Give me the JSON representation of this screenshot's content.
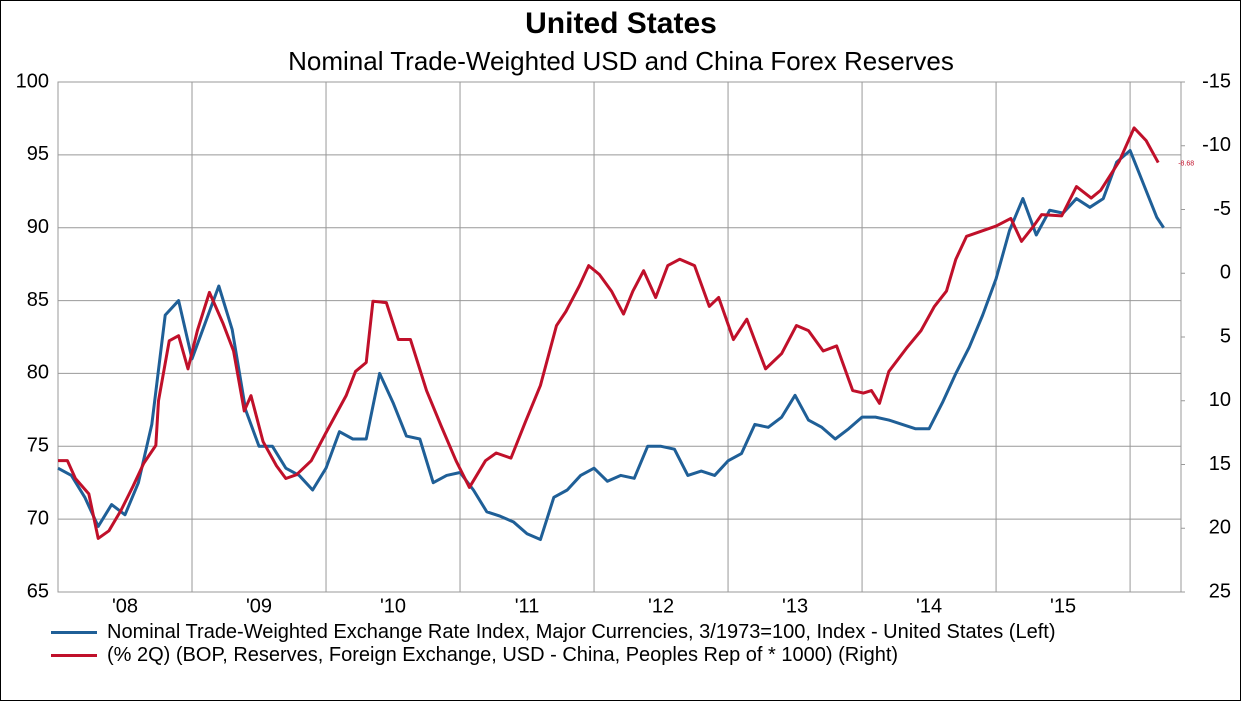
{
  "chart_data": {
    "type": "line",
    "title": "United States",
    "subtitle": "Nominal Trade-Weighted USD and China Forex Reserves",
    "xlim": [
      2008,
      2016.38
    ],
    "xticks": [
      {
        "value": 2008.5,
        "label": "'08"
      },
      {
        "value": 2009.5,
        "label": "'09"
      },
      {
        "value": 2010.5,
        "label": "'10"
      },
      {
        "value": 2011.5,
        "label": "'11"
      },
      {
        "value": 2012.5,
        "label": "'12"
      },
      {
        "value": 2013.5,
        "label": "'13"
      },
      {
        "value": 2014.5,
        "label": "'14"
      },
      {
        "value": 2015.5,
        "label": "'15"
      }
    ],
    "xgrid": [
      2008,
      2009,
      2010,
      2011,
      2012,
      2013,
      2014,
      2015,
      2016
    ],
    "ylim": [
      65,
      100
    ],
    "yticks": [
      65,
      70,
      75,
      80,
      85,
      90,
      95,
      100
    ],
    "y2lim": [
      25,
      -15
    ],
    "y2ticks": [
      25,
      20,
      15,
      10,
      5,
      0,
      -5,
      -10,
      -15
    ],
    "grid": true,
    "label_last": true,
    "series": [
      {
        "name": "Nominal Trade-Weighted Exchange Rate Index, Major Currencies, 3/1973=100, Index - United States (Left)",
        "color": "#1f5f97",
        "axis": "y",
        "x": [
          2008.0,
          2008.1,
          2008.2,
          2008.3,
          2008.4,
          2008.5,
          2008.6,
          2008.7,
          2008.8,
          2008.9,
          2009.0,
          2009.1,
          2009.2,
          2009.3,
          2009.4,
          2009.5,
          2009.6,
          2009.7,
          2009.8,
          2009.9,
          2010.0,
          2010.1,
          2010.2,
          2010.3,
          2010.4,
          2010.5,
          2010.6,
          2010.7,
          2010.8,
          2010.9,
          2011.0,
          2011.1,
          2011.2,
          2011.3,
          2011.4,
          2011.5,
          2011.6,
          2011.7,
          2011.8,
          2011.9,
          2012.0,
          2012.1,
          2012.2,
          2012.3,
          2012.4,
          2012.5,
          2012.6,
          2012.7,
          2012.8,
          2012.9,
          2013.0,
          2013.1,
          2013.2,
          2013.3,
          2013.4,
          2013.5,
          2013.6,
          2013.7,
          2013.8,
          2013.9,
          2014.0,
          2014.1,
          2014.2,
          2014.3,
          2014.4,
          2014.5,
          2014.6,
          2014.7,
          2014.8,
          2014.9,
          2015.0,
          2015.1,
          2015.2,
          2015.3,
          2015.4,
          2015.5,
          2015.6,
          2015.7,
          2015.8,
          2015.9,
          2016.0,
          2016.1,
          2016.2,
          2016.25
        ],
        "values": [
          73.5,
          73,
          71.5,
          69.5,
          71,
          70.3,
          72.5,
          76.5,
          84,
          85,
          81,
          83.5,
          86,
          83,
          77.5,
          75,
          75,
          73.5,
          73,
          72,
          73.5,
          76,
          75.5,
          75.5,
          80,
          78,
          75.7,
          75.5,
          72.5,
          73,
          73.2,
          72,
          70.5,
          70.2,
          69.8,
          69,
          68.6,
          71.5,
          72,
          73,
          73.5,
          72.6,
          73,
          72.8,
          75,
          75,
          74.8,
          73,
          73.3,
          73,
          74,
          74.5,
          76.5,
          76.3,
          77,
          78.5,
          76.8,
          76.3,
          75.5,
          76.2,
          77,
          77,
          76.8,
          76.5,
          76.2,
          76.2,
          78,
          80,
          81.8,
          84,
          86.5,
          89.8,
          92,
          89.5,
          91.2,
          91,
          92,
          91.4,
          92,
          94.5,
          95.3,
          93,
          90.7,
          90
        ]
      },
      {
        "name": "(% 2Q) (BOP, Reserves, Foreign Exchange, USD - China, Peoples Rep of * 1000)  (Right)",
        "color": "#c0102a",
        "axis": "y2",
        "x": [
          2008.0,
          2008.07,
          2008.13,
          2008.23,
          2008.3,
          2008.38,
          2008.47,
          2008.56,
          2008.64,
          2008.73,
          2008.75,
          2008.83,
          2008.9,
          2008.97,
          2009.04,
          2009.13,
          2009.23,
          2009.31,
          2009.39,
          2009.44,
          2009.53,
          2009.63,
          2009.7,
          2009.78,
          2009.89,
          2010.0,
          2010.15,
          2010.22,
          2010.3,
          2010.35,
          2010.45,
          2010.54,
          2010.63,
          2010.75,
          2010.86,
          2010.97,
          2011.07,
          2011.19,
          2011.27,
          2011.38,
          2011.49,
          2011.6,
          2011.72,
          2011.79,
          2011.89,
          2011.96,
          2012.04,
          2012.13,
          2012.22,
          2012.29,
          2012.37,
          2012.46,
          2012.55,
          2012.64,
          2012.75,
          2012.86,
          2012.93,
          2013.04,
          2013.14,
          2013.28,
          2013.4,
          2013.51,
          2013.6,
          2013.71,
          2013.81,
          2013.93,
          2014.01,
          2014.07,
          2014.13,
          2014.2,
          2014.33,
          2014.44,
          2014.54,
          2014.63,
          2014.7,
          2014.78,
          2014.89,
          2015.0,
          2015.11,
          2015.19,
          2015.28,
          2015.34,
          2015.49,
          2015.6,
          2015.71,
          2015.78,
          2015.92,
          2016.03,
          2016.12,
          2016.21
        ],
        "values": [
          14.7,
          14.7,
          16.1,
          17.3,
          20.8,
          20.2,
          18.6,
          16.7,
          14.9,
          13.5,
          10.0,
          5.3,
          4.9,
          7.5,
          4.5,
          1.5,
          3.9,
          6.1,
          10.8,
          9.6,
          13.2,
          15.1,
          16.1,
          15.8,
          14.7,
          12.5,
          9.6,
          7.7,
          7.0,
          2.2,
          2.3,
          5.2,
          5.2,
          9.2,
          12.0,
          14.7,
          16.8,
          14.7,
          14.1,
          14.5,
          11.6,
          8.8,
          4.1,
          3.0,
          1.0,
          -0.6,
          0.1,
          1.4,
          3.2,
          1.4,
          -0.2,
          1.9,
          -0.6,
          -1.1,
          -0.6,
          2.6,
          1.9,
          5.2,
          3.6,
          7.5,
          6.3,
          4.1,
          4.5,
          6.1,
          5.7,
          9.2,
          9.4,
          9.2,
          10.2,
          7.7,
          5.9,
          4.5,
          2.6,
          1.4,
          -1.1,
          -2.9,
          -3.3,
          -3.7,
          -4.3,
          -2.5,
          -3.7,
          -4.6,
          -4.5,
          -6.8,
          -5.9,
          -6.5,
          -8.8,
          -11.4,
          -10.4,
          -8.68
        ]
      }
    ]
  }
}
